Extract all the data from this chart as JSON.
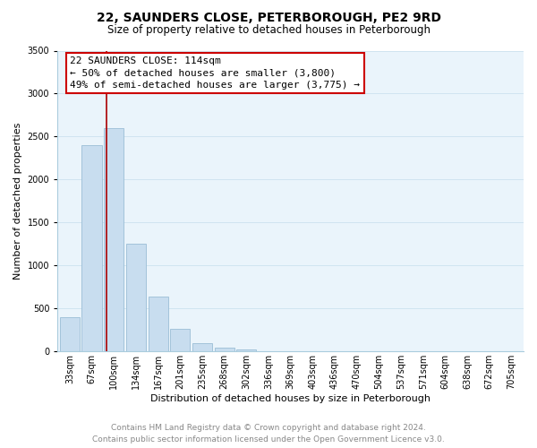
{
  "title": "22, SAUNDERS CLOSE, PETERBOROUGH, PE2 9RD",
  "subtitle": "Size of property relative to detached houses in Peterborough",
  "xlabel": "Distribution of detached houses by size in Peterborough",
  "ylabel": "Number of detached properties",
  "bar_labels": [
    "33sqm",
    "67sqm",
    "100sqm",
    "134sqm",
    "167sqm",
    "201sqm",
    "235sqm",
    "268sqm",
    "302sqm",
    "336sqm",
    "369sqm",
    "403sqm",
    "436sqm",
    "470sqm",
    "504sqm",
    "537sqm",
    "571sqm",
    "604sqm",
    "638sqm",
    "672sqm",
    "705sqm"
  ],
  "bar_values": [
    400,
    2400,
    2600,
    1250,
    640,
    260,
    100,
    45,
    20,
    5,
    2,
    0,
    0,
    0,
    0,
    0,
    0,
    0,
    0,
    0,
    0
  ],
  "bar_color": "#c8ddef",
  "bar_edge_color": "#9bbdd6",
  "grid_color": "#d0e4f0",
  "background_color": "#eaf4fb",
  "vline_color": "#aa0000",
  "annotation_title": "22 SAUNDERS CLOSE: 114sqm",
  "annotation_line1": "← 50% of detached houses are smaller (3,800)",
  "annotation_line2": "49% of semi-detached houses are larger (3,775) →",
  "annotation_box_color": "#ffffff",
  "annotation_box_edge": "#cc0000",
  "ylim": [
    0,
    3500
  ],
  "yticks": [
    0,
    500,
    1000,
    1500,
    2000,
    2500,
    3000,
    3500
  ],
  "footer_line1": "Contains HM Land Registry data © Crown copyright and database right 2024.",
  "footer_line2": "Contains public sector information licensed under the Open Government Licence v3.0.",
  "title_fontsize": 10,
  "subtitle_fontsize": 8.5,
  "axis_label_fontsize": 8,
  "tick_fontsize": 7,
  "annotation_fontsize": 8,
  "footer_fontsize": 6.5
}
